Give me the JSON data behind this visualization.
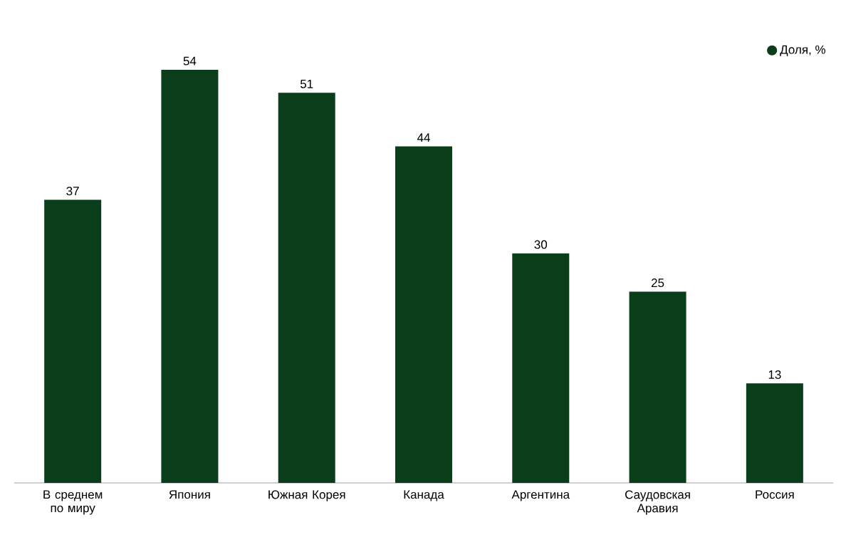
{
  "chart_data": {
    "type": "bar",
    "categories": [
      "В среднем по миру",
      "Япония",
      "Южная Корея",
      "Канада",
      "Аргентина",
      "Саудовская Аравия",
      "Россия"
    ],
    "series": [
      {
        "name": "Доля, %",
        "color": "#0a3d1a",
        "values": [
          37,
          54,
          51,
          44,
          30,
          25,
          13
        ]
      }
    ],
    "data_labels": true,
    "legend": "top right",
    "marker": "circle",
    "grid": false
  }
}
